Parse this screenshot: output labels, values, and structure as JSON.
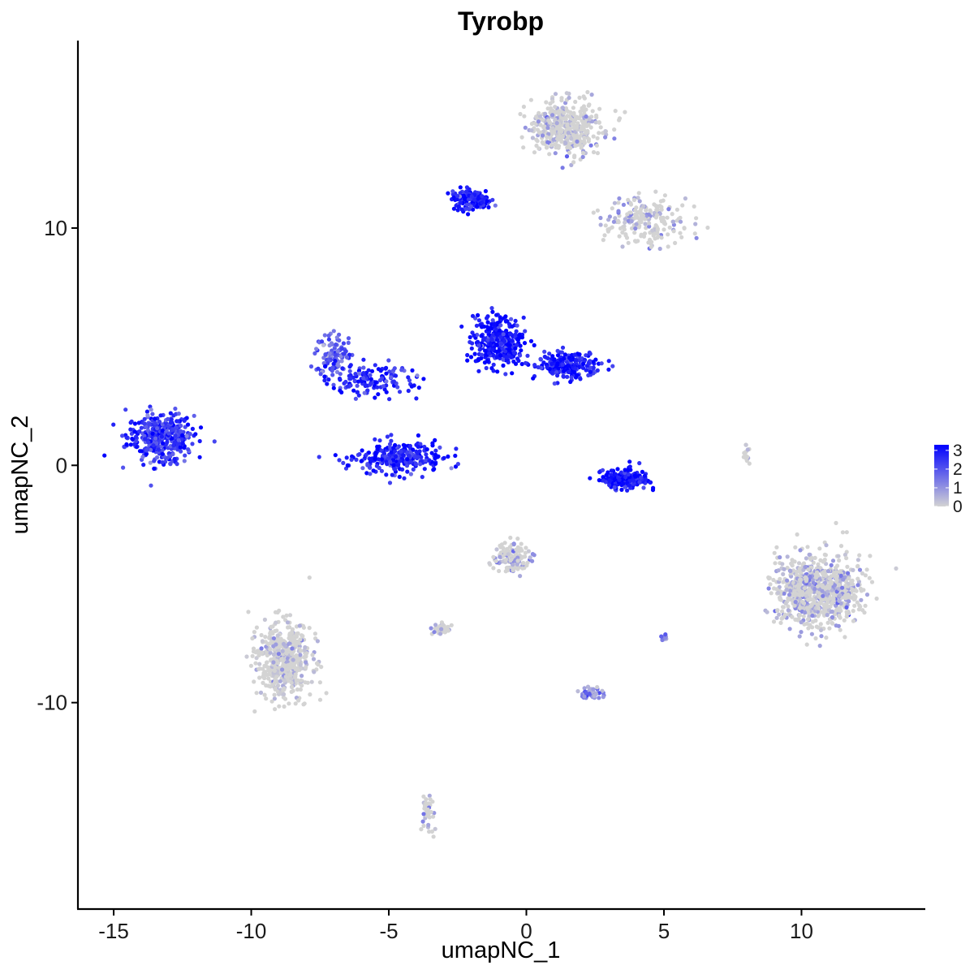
{
  "chart_data": {
    "type": "scatter",
    "title": "Tyrobp",
    "xlabel": "umapNC_1",
    "ylabel": "umapNC_2",
    "xlim": [
      -16.3,
      14.5
    ],
    "ylim": [
      -18.7,
      17.9
    ],
    "x_ticks": [
      -15,
      -10,
      -5,
      0,
      5,
      10
    ],
    "y_ticks": [
      -10,
      0,
      10
    ],
    "grid": false,
    "legend": {
      "type": "colorbar",
      "position": "right",
      "min": 0,
      "max": 3.3,
      "ticks": [
        0,
        1,
        2,
        3
      ],
      "color_low": "#d3d3d3",
      "color_high": "#0000ff"
    },
    "series": [
      {
        "cluster": 1,
        "center": [
          -13.3,
          1.2
        ],
        "spread": [
          1.0,
          0.85
        ],
        "n": 380,
        "expression": 2.5
      },
      {
        "cluster": 2,
        "center": [
          -7.0,
          4.7
        ],
        "spread": [
          0.55,
          0.75
        ],
        "n": 110,
        "expression": 1.8
      },
      {
        "cluster": 3,
        "center": [
          -5.7,
          3.6
        ],
        "spread": [
          1.4,
          0.6
        ],
        "n": 140,
        "expression": 2.6
      },
      {
        "cluster": 4,
        "center": [
          -4.6,
          0.3
        ],
        "spread": [
          1.3,
          0.55
        ],
        "n": 290,
        "expression": 2.7
      },
      {
        "cluster": 5,
        "center": [
          -1.0,
          5.2
        ],
        "spread": [
          0.75,
          0.85
        ],
        "n": 330,
        "expression": 3.0
      },
      {
        "cluster": 6,
        "center": [
          1.5,
          4.2
        ],
        "spread": [
          1.0,
          0.45
        ],
        "n": 210,
        "expression": 2.8
      },
      {
        "cluster": 7,
        "center": [
          3.6,
          -0.6
        ],
        "spread": [
          0.7,
          0.35
        ],
        "n": 200,
        "expression": 3.1
      },
      {
        "cluster": 8,
        "center": [
          -2.0,
          11.2
        ],
        "spread": [
          0.6,
          0.35
        ],
        "n": 140,
        "expression": 2.8
      },
      {
        "cluster": 9,
        "center": [
          1.4,
          14.2
        ],
        "spread": [
          1.1,
          0.95
        ],
        "n": 430,
        "expression": 0.3
      },
      {
        "cluster": 10,
        "center": [
          4.4,
          10.3
        ],
        "spread": [
          1.3,
          0.85
        ],
        "n": 210,
        "expression": 0.4
      },
      {
        "cluster": 11,
        "center": [
          10.6,
          -5.3
        ],
        "spread": [
          1.25,
          1.25
        ],
        "n": 820,
        "expression": 0.6
      },
      {
        "cluster": 12,
        "center": [
          -8.8,
          -8.2
        ],
        "spread": [
          0.8,
          1.35
        ],
        "n": 520,
        "expression": 0.25
      },
      {
        "cluster": 13,
        "center": [
          -0.5,
          -3.9
        ],
        "spread": [
          0.55,
          0.55
        ],
        "n": 130,
        "expression": 0.7
      },
      {
        "cluster": 14,
        "center": [
          2.4,
          -9.6
        ],
        "spread": [
          0.35,
          0.2
        ],
        "n": 60,
        "expression": 1.0
      },
      {
        "cluster": 15,
        "center": [
          -3.1,
          -6.9
        ],
        "spread": [
          0.25,
          0.2
        ],
        "n": 45,
        "expression": 0.9
      },
      {
        "cluster": 16,
        "center": [
          -3.6,
          -14.6
        ],
        "spread": [
          0.2,
          0.6
        ],
        "n": 45,
        "expression": 0.5
      },
      {
        "cluster": 17,
        "center": [
          8.0,
          0.5
        ],
        "spread": [
          0.08,
          0.4
        ],
        "n": 14,
        "expression": 0.2
      },
      {
        "cluster": 18,
        "center": [
          5.0,
          -7.3
        ],
        "spread": [
          0.15,
          0.12
        ],
        "n": 14,
        "expression": 1.2
      }
    ]
  }
}
